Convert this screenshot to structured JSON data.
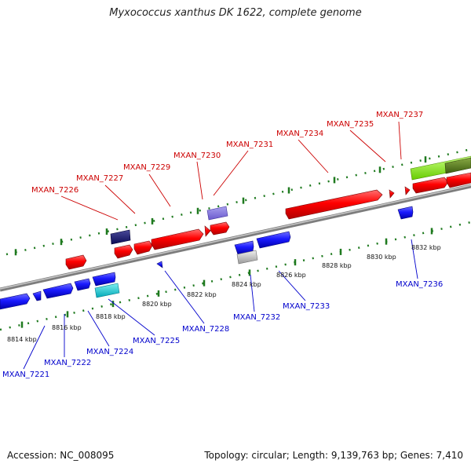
{
  "title": "Myxococcus xanthus DK 1622, complete genome",
  "footer": {
    "accession": "Accession: NC_008095",
    "summary": "Topology: circular; Length: 9,139,763 bp; Genes: 7,410"
  },
  "colors": {
    "forward_label": "#cc0000",
    "reverse_label": "#0000cc",
    "forward_gene": "#ff0000",
    "reverse_gene": "#1a1aff",
    "backbone": "#999999",
    "tick": "#1f7a1f"
  },
  "scale_labels": [
    "8814 kbp",
    "8816 kbp",
    "8818 kbp",
    "8820 kbp",
    "8822 kbp",
    "8824 kbp",
    "8826 kbp",
    "8828 kbp",
    "8830 kbp",
    "8832 kbp"
  ],
  "forward_genes": [
    "MXAN_7226",
    "MXAN_7227",
    "MXAN_7229",
    "MXAN_7230",
    "MXAN_7231",
    "MXAN_7234",
    "MXAN_7235",
    "MXAN_7237"
  ],
  "reverse_genes": [
    "MXAN_7221",
    "MXAN_7222",
    "MXAN_7224",
    "MXAN_7225",
    "MXAN_7228",
    "MXAN_7232",
    "MXAN_7233",
    "MXAN_7236"
  ]
}
